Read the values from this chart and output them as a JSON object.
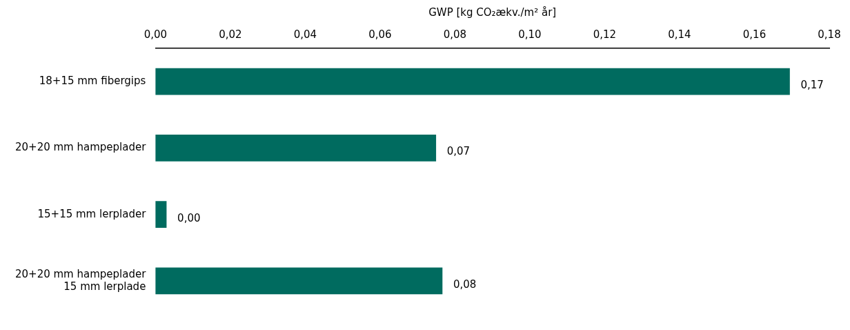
{
  "chart_data": {
    "type": "bar",
    "orientation": "horizontal",
    "xlabel": "GWP [kg CO₂ækv./m² år]",
    "categories": [
      "18+15 mm fibergips",
      "20+20 mm hampeplader",
      "15+15 mm lerplader",
      "20+20 mm hampeplader\n15 mm lerplade"
    ],
    "values": [
      0.1694,
      0.0749,
      0.0029,
      0.0766
    ],
    "value_labels": [
      "0,17",
      "0,07",
      "0,00",
      "0,08"
    ],
    "color": "#006b5f",
    "xlim": [
      0,
      0.18
    ],
    "xticks": [
      {
        "value": 0,
        "label": "0,00"
      },
      {
        "value": 0.02,
        "label": "0,02"
      },
      {
        "value": 0.04,
        "label": "0,04"
      },
      {
        "value": 0.06,
        "label": "0,06"
      },
      {
        "value": 0.08,
        "label": "0,08"
      },
      {
        "value": 0.1,
        "label": "0,10"
      },
      {
        "value": 0.12,
        "label": "0,12"
      },
      {
        "value": 0.14,
        "label": "0,14"
      },
      {
        "value": 0.16,
        "label": "0,16"
      },
      {
        "value": 0.18,
        "label": "0,18"
      }
    ],
    "grid": false,
    "legend": false
  }
}
